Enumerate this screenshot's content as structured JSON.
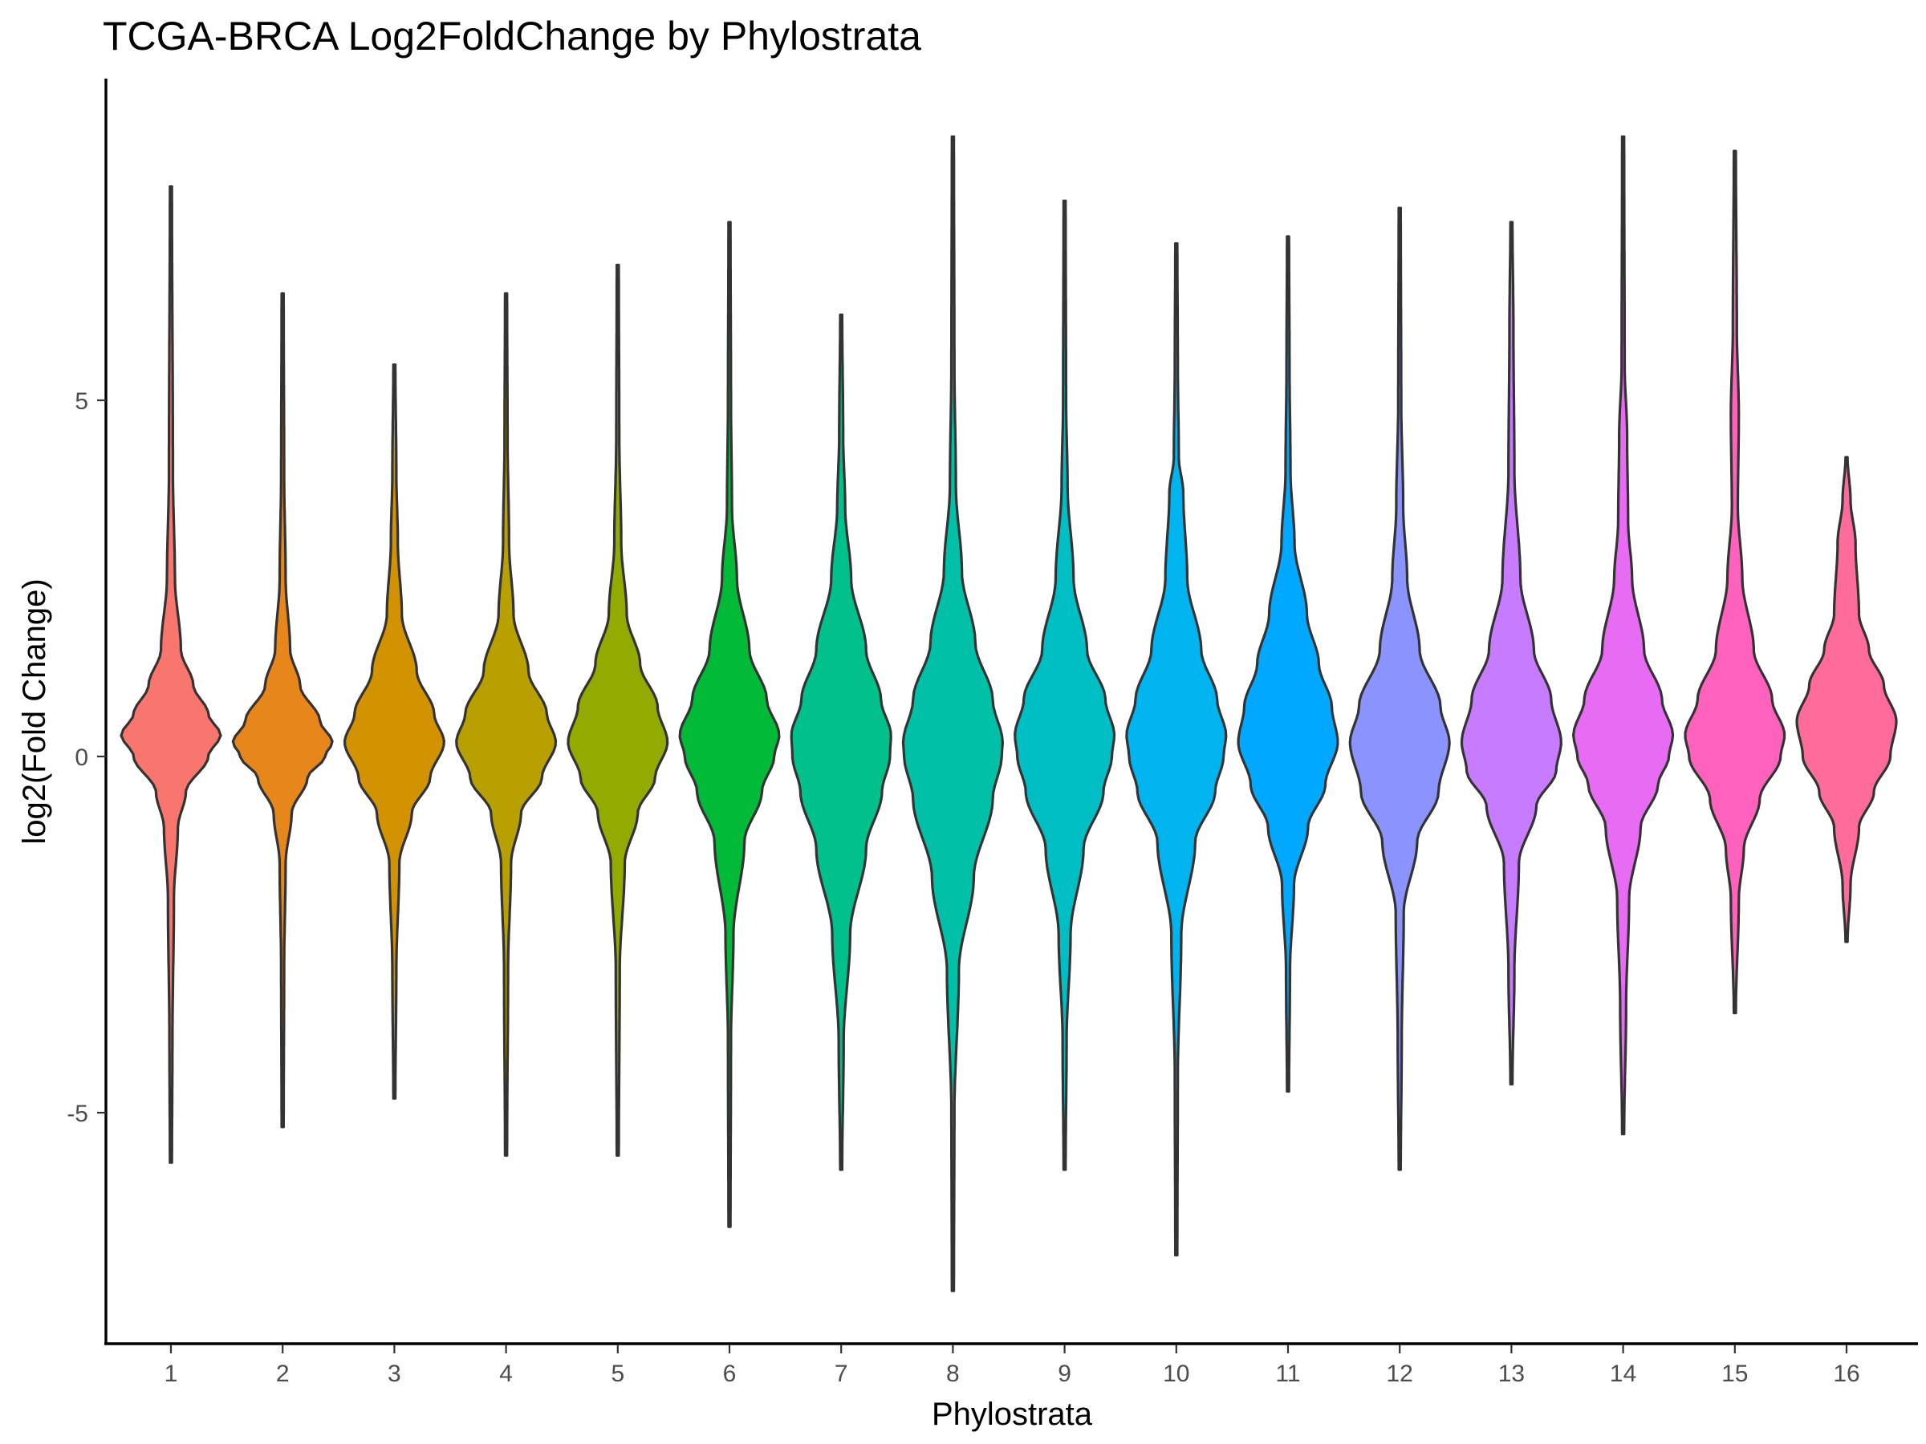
{
  "chart_data": {
    "type": "violin",
    "title": "TCGA-BRCA Log2FoldChange by Phylostrata",
    "xlabel": "Phylostrata",
    "ylabel": "log2(Fold Change)",
    "ylim": [
      -8,
      9.0
    ],
    "yticks": [
      -5,
      0,
      5
    ],
    "grid": false,
    "legend": "none",
    "categories": [
      "1",
      "2",
      "3",
      "4",
      "5",
      "6",
      "7",
      "8",
      "9",
      "10",
      "11",
      "12",
      "13",
      "14",
      "15",
      "16"
    ],
    "colors": [
      "#F8766D",
      "#E7861B",
      "#D39200",
      "#B8A000",
      "#93AA00",
      "#00BA38",
      "#00C08B",
      "#00C1A7",
      "#00BFC4",
      "#00B4F0",
      "#00A9FF",
      "#8B93FF",
      "#C77CFF",
      "#E76BF3",
      "#FF62BC",
      "#FF6C9A"
    ],
    "series": [
      {
        "category": "1",
        "min": -5.7,
        "max": 8.0,
        "median": 0.3,
        "shape": [
          [
            -5.7,
            0.02
          ],
          [
            -4,
            0.03
          ],
          [
            -2,
            0.06
          ],
          [
            -1,
            0.14
          ],
          [
            -0.5,
            0.3
          ],
          [
            0,
            0.75
          ],
          [
            0.3,
            1.0
          ],
          [
            0.6,
            0.75
          ],
          [
            1,
            0.45
          ],
          [
            1.5,
            0.2
          ],
          [
            2.5,
            0.08
          ],
          [
            4,
            0.04
          ],
          [
            8.0,
            0.02
          ]
        ]
      },
      {
        "category": "2",
        "min": -5.2,
        "max": 6.5,
        "median": 0.2,
        "shape": [
          [
            -5.2,
            0.02
          ],
          [
            -3,
            0.03
          ],
          [
            -1.5,
            0.06
          ],
          [
            -0.8,
            0.18
          ],
          [
            -0.3,
            0.5
          ],
          [
            0,
            0.85
          ],
          [
            0.2,
            1.0
          ],
          [
            0.5,
            0.75
          ],
          [
            1,
            0.35
          ],
          [
            1.5,
            0.15
          ],
          [
            2.5,
            0.06
          ],
          [
            4,
            0.03
          ],
          [
            6.5,
            0.02
          ]
        ]
      },
      {
        "category": "3",
        "min": -4.8,
        "max": 5.5,
        "median": 0.2,
        "shape": [
          [
            -4.8,
            0.02
          ],
          [
            -3,
            0.04
          ],
          [
            -1.5,
            0.1
          ],
          [
            -0.8,
            0.35
          ],
          [
            -0.3,
            0.72
          ],
          [
            0.2,
            1.0
          ],
          [
            0.6,
            0.8
          ],
          [
            1.2,
            0.45
          ],
          [
            2,
            0.15
          ],
          [
            3,
            0.07
          ],
          [
            4,
            0.04
          ],
          [
            5.5,
            0.02
          ]
        ]
      },
      {
        "category": "4",
        "min": -5.6,
        "max": 6.5,
        "median": 0.2,
        "shape": [
          [
            -5.6,
            0.02
          ],
          [
            -3,
            0.04
          ],
          [
            -1.5,
            0.1
          ],
          [
            -0.8,
            0.3
          ],
          [
            -0.3,
            0.72
          ],
          [
            0.2,
            1.0
          ],
          [
            0.6,
            0.82
          ],
          [
            1.2,
            0.45
          ],
          [
            2,
            0.15
          ],
          [
            3,
            0.06
          ],
          [
            4.5,
            0.03
          ],
          [
            6.5,
            0.02
          ]
        ]
      },
      {
        "category": "5",
        "min": -5.6,
        "max": 6.9,
        "median": 0.2,
        "shape": [
          [
            -5.6,
            0.02
          ],
          [
            -3,
            0.04
          ],
          [
            -1.5,
            0.14
          ],
          [
            -0.8,
            0.4
          ],
          [
            -0.3,
            0.75
          ],
          [
            0.2,
            1.0
          ],
          [
            0.7,
            0.8
          ],
          [
            1.3,
            0.45
          ],
          [
            2,
            0.18
          ],
          [
            3,
            0.07
          ],
          [
            4.5,
            0.03
          ],
          [
            6.9,
            0.02
          ]
        ]
      },
      {
        "category": "6",
        "min": -6.6,
        "max": 7.5,
        "median": 0.2,
        "shape": [
          [
            -6.6,
            0.02
          ],
          [
            -4,
            0.03
          ],
          [
            -2.5,
            0.08
          ],
          [
            -1.2,
            0.3
          ],
          [
            -0.5,
            0.65
          ],
          [
            0,
            0.9
          ],
          [
            0.3,
            1.0
          ],
          [
            0.8,
            0.75
          ],
          [
            1.5,
            0.4
          ],
          [
            2.5,
            0.15
          ],
          [
            3.5,
            0.05
          ],
          [
            5,
            0.03
          ],
          [
            7.5,
            0.02
          ]
        ]
      },
      {
        "category": "7",
        "min": -5.8,
        "max": 6.2,
        "median": 0.1,
        "shape": [
          [
            -5.8,
            0.02
          ],
          [
            -4,
            0.05
          ],
          [
            -2.5,
            0.18
          ],
          [
            -1.3,
            0.5
          ],
          [
            -0.5,
            0.82
          ],
          [
            0,
            0.98
          ],
          [
            0.3,
            1.0
          ],
          [
            0.8,
            0.8
          ],
          [
            1.5,
            0.5
          ],
          [
            2.5,
            0.2
          ],
          [
            3.5,
            0.08
          ],
          [
            4.5,
            0.04
          ],
          [
            6.2,
            0.02
          ]
        ]
      },
      {
        "category": "8",
        "min": -7.5,
        "max": 8.7,
        "median": 0.1,
        "shape": [
          [
            -7.5,
            0.02
          ],
          [
            -5,
            0.03
          ],
          [
            -3,
            0.12
          ],
          [
            -1.7,
            0.42
          ],
          [
            -0.6,
            0.8
          ],
          [
            0,
            0.98
          ],
          [
            0.2,
            1.0
          ],
          [
            0.8,
            0.8
          ],
          [
            1.6,
            0.45
          ],
          [
            2.6,
            0.18
          ],
          [
            3.8,
            0.06
          ],
          [
            5.5,
            0.03
          ],
          [
            8.7,
            0.02
          ]
        ]
      },
      {
        "category": "9",
        "min": -5.8,
        "max": 7.8,
        "median": 0.2,
        "shape": [
          [
            -5.8,
            0.02
          ],
          [
            -4,
            0.04
          ],
          [
            -2.5,
            0.12
          ],
          [
            -1.3,
            0.38
          ],
          [
            -0.5,
            0.78
          ],
          [
            0,
            0.95
          ],
          [
            0.3,
            1.0
          ],
          [
            0.8,
            0.82
          ],
          [
            1.5,
            0.45
          ],
          [
            2.5,
            0.18
          ],
          [
            3.8,
            0.06
          ],
          [
            5,
            0.03
          ],
          [
            7.8,
            0.02
          ]
        ]
      },
      {
        "category": "10",
        "min": -7.0,
        "max": 7.2,
        "median": 0.3,
        "shape": [
          [
            -7.0,
            0.02
          ],
          [
            -4.5,
            0.03
          ],
          [
            -2.5,
            0.1
          ],
          [
            -1.2,
            0.38
          ],
          [
            -0.5,
            0.78
          ],
          [
            0,
            0.95
          ],
          [
            0.3,
            1.0
          ],
          [
            0.8,
            0.82
          ],
          [
            1.5,
            0.5
          ],
          [
            2.5,
            0.22
          ],
          [
            3.7,
            0.14
          ],
          [
            4.2,
            0.05
          ],
          [
            5.5,
            0.03
          ],
          [
            7.2,
            0.02
          ]
        ]
      },
      {
        "category": "11",
        "min": -4.7,
        "max": 7.3,
        "median": 0.2,
        "shape": [
          [
            -4.7,
            0.02
          ],
          [
            -3,
            0.04
          ],
          [
            -1.8,
            0.12
          ],
          [
            -1,
            0.4
          ],
          [
            -0.4,
            0.75
          ],
          [
            0.2,
            1.0
          ],
          [
            0.7,
            0.88
          ],
          [
            1.3,
            0.62
          ],
          [
            2,
            0.38
          ],
          [
            3,
            0.13
          ],
          [
            4,
            0.05
          ],
          [
            5.5,
            0.03
          ],
          [
            7.3,
            0.02
          ]
        ]
      },
      {
        "category": "12",
        "min": -5.8,
        "max": 7.7,
        "median": 0.2,
        "shape": [
          [
            -5.8,
            0.02
          ],
          [
            -4,
            0.04
          ],
          [
            -2.2,
            0.08
          ],
          [
            -1.2,
            0.35
          ],
          [
            -0.5,
            0.78
          ],
          [
            0.2,
            1.0
          ],
          [
            0.7,
            0.82
          ],
          [
            1.5,
            0.4
          ],
          [
            2.5,
            0.15
          ],
          [
            3.5,
            0.07
          ],
          [
            5,
            0.03
          ],
          [
            7.7,
            0.02
          ]
        ]
      },
      {
        "category": "13",
        "min": -4.6,
        "max": 7.5,
        "median": 0.2,
        "shape": [
          [
            -4.6,
            0.02
          ],
          [
            -3,
            0.06
          ],
          [
            -1.5,
            0.15
          ],
          [
            -0.7,
            0.5
          ],
          [
            -0.2,
            0.9
          ],
          [
            0.2,
            1.0
          ],
          [
            0.8,
            0.8
          ],
          [
            1.5,
            0.45
          ],
          [
            2.5,
            0.18
          ],
          [
            4,
            0.06
          ],
          [
            6,
            0.04
          ],
          [
            7.5,
            0.02
          ]
        ]
      },
      {
        "category": "14",
        "min": -5.3,
        "max": 8.7,
        "median": 0.3,
        "shape": [
          [
            -5.3,
            0.02
          ],
          [
            -3.5,
            0.06
          ],
          [
            -2,
            0.12
          ],
          [
            -1,
            0.35
          ],
          [
            -0.4,
            0.7
          ],
          [
            0,
            0.92
          ],
          [
            0.3,
            1.0
          ],
          [
            0.8,
            0.78
          ],
          [
            1.5,
            0.42
          ],
          [
            2.5,
            0.18
          ],
          [
            3.3,
            0.1
          ],
          [
            4.5,
            0.08
          ],
          [
            5.5,
            0.03
          ],
          [
            8.7,
            0.02
          ]
        ]
      },
      {
        "category": "15",
        "min": -3.6,
        "max": 8.5,
        "median": 0.3,
        "shape": [
          [
            -3.6,
            0.02
          ],
          [
            -2,
            0.08
          ],
          [
            -1.3,
            0.18
          ],
          [
            -0.6,
            0.5
          ],
          [
            0,
            0.92
          ],
          [
            0.3,
            1.0
          ],
          [
            0.8,
            0.75
          ],
          [
            1.5,
            0.38
          ],
          [
            2.5,
            0.15
          ],
          [
            3.5,
            0.06
          ],
          [
            4.8,
            0.08
          ],
          [
            6,
            0.04
          ],
          [
            8.5,
            0.02
          ]
        ]
      },
      {
        "category": "16",
        "min": -2.6,
        "max": 4.2,
        "median": 0.5,
        "shape": [
          [
            -2.6,
            0.02
          ],
          [
            -1.8,
            0.08
          ],
          [
            -1,
            0.25
          ],
          [
            -0.5,
            0.55
          ],
          [
            0,
            0.88
          ],
          [
            0.5,
            1.0
          ],
          [
            1,
            0.75
          ],
          [
            1.5,
            0.45
          ],
          [
            2,
            0.25
          ],
          [
            3,
            0.18
          ],
          [
            3.6,
            0.08
          ],
          [
            4.2,
            0.02
          ]
        ]
      }
    ]
  }
}
